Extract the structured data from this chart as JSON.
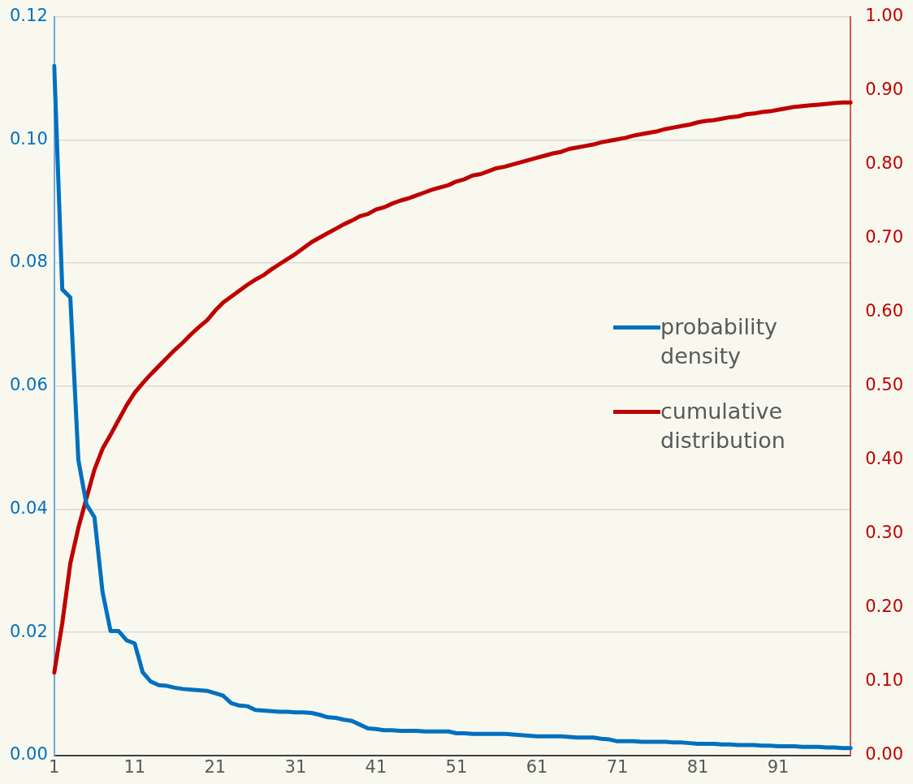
{
  "chart_data": {
    "type": "line",
    "categories": [
      "1",
      null,
      null,
      null,
      null,
      null,
      null,
      null,
      null,
      null,
      "11",
      null,
      null,
      null,
      null,
      null,
      null,
      null,
      null,
      null,
      "21",
      null,
      null,
      null,
      null,
      null,
      null,
      null,
      null,
      null,
      "31",
      null,
      null,
      null,
      null,
      null,
      null,
      null,
      null,
      null,
      "41",
      null,
      null,
      null,
      null,
      null,
      null,
      null,
      null,
      null,
      "51",
      null,
      null,
      null,
      null,
      null,
      null,
      null,
      null,
      null,
      "61",
      null,
      null,
      null,
      null,
      null,
      null,
      null,
      null,
      null,
      "71",
      null,
      null,
      null,
      null,
      null,
      null,
      null,
      null,
      null,
      "81",
      null,
      null,
      null,
      null,
      null,
      null,
      null,
      null,
      null,
      "91",
      null,
      null,
      null,
      null,
      null,
      null,
      null,
      null,
      null
    ],
    "series": [
      {
        "name": "probability density",
        "color": "#0070c0",
        "values": [
          0.112,
          0.0757,
          0.0744,
          0.048,
          0.0408,
          0.0387,
          0.0266,
          0.0202,
          0.0202,
          0.0187,
          0.0182,
          0.0135,
          0.012,
          0.0114,
          0.0113,
          0.011,
          0.0108,
          0.0107,
          0.0106,
          0.0105,
          0.0101,
          0.0097,
          0.0085,
          0.0081,
          0.008,
          0.0074,
          0.0073,
          0.0072,
          0.0071,
          0.0071,
          0.007,
          0.007,
          0.0069,
          0.0066,
          0.0062,
          0.0061,
          0.0058,
          0.0056,
          0.005,
          0.0044,
          0.0043,
          0.0041,
          0.0041,
          0.004,
          0.004,
          0.004,
          0.0039,
          0.0039,
          0.0039,
          0.0039,
          0.0036,
          0.0036,
          0.0035,
          0.0035,
          0.0035,
          0.0035,
          0.0035,
          0.0034,
          0.0033,
          0.0032,
          0.0031,
          0.0031,
          0.0031,
          0.0031,
          0.003,
          0.0029,
          0.0029,
          0.0029,
          0.0027,
          0.0026,
          0.0023,
          0.0023,
          0.0023,
          0.0022,
          0.0022,
          0.0022,
          0.0022,
          0.0021,
          0.0021,
          0.002,
          0.0019,
          0.0019,
          0.0019,
          0.0018,
          0.0018,
          0.0017,
          0.0017,
          0.0017,
          0.0016,
          0.0016,
          0.0015,
          0.0015,
          0.0015,
          0.0014,
          0.0014,
          0.0014,
          0.0013,
          0.0013,
          0.0012,
          0.0012
        ]
      },
      {
        "name": "cumulative distribution",
        "color": "#c00000",
        "axis": "y2",
        "values": [
          0.112,
          0.179,
          0.26,
          0.308,
          0.348,
          0.387,
          0.415,
          0.434,
          0.454,
          0.474,
          0.491,
          0.504,
          0.516,
          0.527,
          0.538,
          0.549,
          0.559,
          0.57,
          0.58,
          0.589,
          0.602,
          0.613,
          0.621,
          0.629,
          0.637,
          0.644,
          0.65,
          0.658,
          0.665,
          0.672,
          0.679,
          0.687,
          0.695,
          0.701,
          0.707,
          0.713,
          0.719,
          0.724,
          0.73,
          0.733,
          0.739,
          0.742,
          0.747,
          0.751,
          0.754,
          0.758,
          0.762,
          0.766,
          0.769,
          0.772,
          0.777,
          0.78,
          0.785,
          0.787,
          0.791,
          0.795,
          0.797,
          0.8,
          0.803,
          0.806,
          0.809,
          0.812,
          0.815,
          0.817,
          0.821,
          0.823,
          0.825,
          0.827,
          0.83,
          0.832,
          0.834,
          0.836,
          0.839,
          0.841,
          0.843,
          0.845,
          0.848,
          0.85,
          0.852,
          0.854,
          0.857,
          0.859,
          0.86,
          0.862,
          0.864,
          0.865,
          0.868,
          0.869,
          0.871,
          0.872,
          0.874,
          0.876,
          0.878,
          0.879,
          0.88,
          0.881,
          0.882,
          0.883,
          0.884,
          0.884
        ]
      }
    ],
    "ylim": [
      0,
      0.12
    ],
    "yticks": [
      {
        "value": 0,
        "label": "0.00"
      },
      {
        "value": 0.02,
        "label": "0.02"
      },
      {
        "value": 0.04,
        "label": "0.04"
      },
      {
        "value": 0.06,
        "label": "0.06"
      },
      {
        "value": 0.08,
        "label": "0.08"
      },
      {
        "value": 0.1,
        "label": "0.10"
      },
      {
        "value": 0.12,
        "label": "0.12"
      }
    ],
    "y2lim": [
      0,
      1
    ],
    "y2ticks": [
      {
        "value": 0,
        "label": "0.00"
      },
      {
        "value": 0.1,
        "label": "0.10"
      },
      {
        "value": 0.2,
        "label": "0.20"
      },
      {
        "value": 0.3,
        "label": "0.30"
      },
      {
        "value": 0.4,
        "label": "0.40"
      },
      {
        "value": 0.5,
        "label": "0.50"
      },
      {
        "value": 0.6,
        "label": "0.60"
      },
      {
        "value": 0.7,
        "label": "0.70"
      },
      {
        "value": 0.8,
        "label": "0.80"
      },
      {
        "value": 0.9,
        "label": "0.90"
      },
      {
        "value": 1,
        "label": "1.00"
      }
    ],
    "grid": "y",
    "legend": "right",
    "marker": "none",
    "line_style": "solid"
  }
}
